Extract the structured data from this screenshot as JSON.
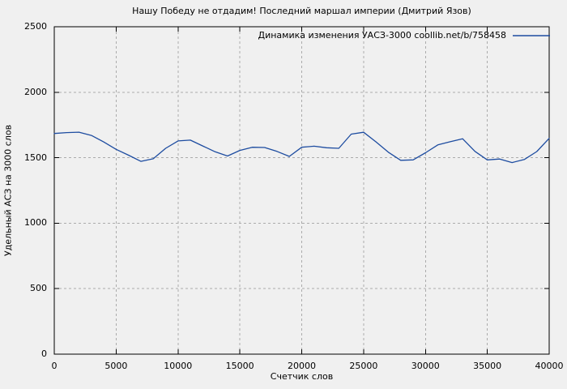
{
  "colors": {
    "background": "#f0f0f0",
    "grid": "#ababab",
    "axis": "#000000",
    "text": "#000000",
    "line": "#1d4ca0"
  },
  "legend": {
    "label": "Динамика изменения УАСЗ-3000 coollib.net/b/758458"
  },
  "chart_data": {
    "type": "line",
    "title": "Нашу Победу не отдадим! Последний маршал империи (Дмитрий Язов)",
    "xlabel": "Счетчик слов",
    "ylabel": "Удельный АСЗ на 3000 слов",
    "xlim": [
      0,
      40000
    ],
    "ylim": [
      0,
      2500
    ],
    "x_ticks": [
      0,
      5000,
      10000,
      15000,
      20000,
      25000,
      30000,
      35000,
      40000
    ],
    "y_ticks": [
      0,
      500,
      1000,
      1500,
      2000,
      2500
    ],
    "grid": true,
    "grid_style": "dashed",
    "legend_position": "top-right-inside",
    "series": [
      {
        "name": "Динамика изменения УАСЗ-3000 coollib.net/b/758458",
        "color": "#1d4ca0",
        "x": [
          0,
          1000,
          2000,
          3000,
          4000,
          5000,
          6000,
          7000,
          8000,
          9000,
          10000,
          11000,
          12000,
          13000,
          14000,
          15000,
          16000,
          17000,
          18000,
          19000,
          20000,
          21000,
          22000,
          23000,
          24000,
          25000,
          26000,
          27000,
          28000,
          29000,
          30000,
          31000,
          32000,
          33000,
          34000,
          35000,
          36000,
          37000,
          38000,
          39000,
          40000
        ],
        "y": [
          1685,
          1692,
          1695,
          1670,
          1620,
          1564,
          1519,
          1472,
          1492,
          1572,
          1628,
          1634,
          1590,
          1545,
          1513,
          1556,
          1580,
          1578,
          1548,
          1510,
          1580,
          1588,
          1576,
          1572,
          1680,
          1694,
          1621,
          1542,
          1480,
          1483,
          1538,
          1598,
          1622,
          1645,
          1548,
          1483,
          1490,
          1463,
          1487,
          1547,
          1648
        ]
      }
    ]
  }
}
